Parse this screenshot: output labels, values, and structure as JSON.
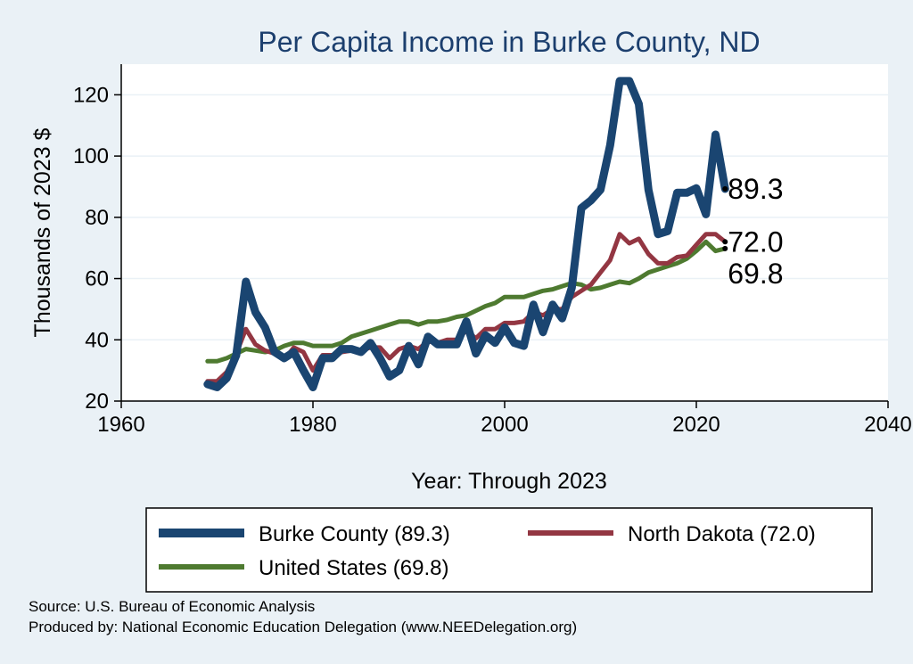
{
  "chart_data": {
    "type": "line",
    "title": "Per Capita Income in Burke County, ND",
    "xlabel": "Year: Through 2023",
    "ylabel": "Thousands of 2023 $",
    "xlim": [
      1960,
      2040
    ],
    "ylim": [
      20,
      130
    ],
    "xticks": [
      1960,
      1980,
      2000,
      2020,
      2040
    ],
    "yticks": [
      20,
      40,
      60,
      80,
      100,
      120
    ],
    "grid": "horizontal",
    "legend_position": "bottom",
    "series": [
      {
        "name": "Burke County (89.3)",
        "color": "#1a4571",
        "end_label": "89.3",
        "x": [
          1969,
          1970,
          1971,
          1972,
          1973,
          1974,
          1975,
          1976,
          1977,
          1978,
          1979,
          1980,
          1981,
          1982,
          1983,
          1984,
          1985,
          1986,
          1987,
          1988,
          1989,
          1990,
          1991,
          1992,
          1993,
          1994,
          1995,
          1996,
          1997,
          1998,
          1999,
          2000,
          2001,
          2002,
          2003,
          2004,
          2005,
          2006,
          2007,
          2008,
          2009,
          2010,
          2011,
          2012,
          2013,
          2014,
          2015,
          2016,
          2017,
          2018,
          2019,
          2020,
          2021,
          2022,
          2023
        ],
        "y": [
          25.5,
          24.5,
          27.5,
          35,
          59,
          49,
          44,
          36,
          34,
          36,
          30,
          24.5,
          34,
          34,
          37,
          37,
          36,
          39,
          34,
          28,
          30,
          38,
          32,
          41,
          38.5,
          38.5,
          38.5,
          46,
          35.5,
          41.5,
          39,
          44,
          39,
          38,
          51.5,
          42.5,
          51.5,
          47,
          57,
          83,
          85.5,
          89,
          103.5,
          124.5,
          124.5,
          117,
          89,
          74.5,
          75.5,
          88,
          88,
          89.5,
          81,
          107,
          89.3
        ]
      },
      {
        "name": "North Dakota (72.0)",
        "color": "#933642",
        "end_label": "72.0",
        "x": [
          1969,
          1970,
          1971,
          1972,
          1973,
          1974,
          1975,
          1976,
          1977,
          1978,
          1979,
          1980,
          1981,
          1982,
          1983,
          1984,
          1985,
          1986,
          1987,
          1988,
          1989,
          1990,
          1991,
          1992,
          1993,
          1994,
          1995,
          1996,
          1997,
          1998,
          1999,
          2000,
          2001,
          2002,
          2003,
          2004,
          2005,
          2006,
          2007,
          2008,
          2009,
          2010,
          2011,
          2012,
          2013,
          2014,
          2015,
          2016,
          2017,
          2018,
          2019,
          2020,
          2021,
          2022,
          2023
        ],
        "y": [
          26.5,
          26.5,
          29.5,
          35.5,
          43.5,
          38.5,
          36.5,
          35.5,
          33.5,
          37.5,
          36,
          30,
          35,
          35,
          36,
          36.5,
          36.5,
          37.5,
          37.5,
          34,
          37,
          38,
          37,
          39.5,
          39,
          40,
          40,
          43,
          40.5,
          43.5,
          43.5,
          45.5,
          45.5,
          46,
          49,
          48,
          50,
          50,
          54,
          56,
          58,
          62,
          66,
          74.5,
          71.5,
          73,
          68,
          65,
          65,
          67,
          67.5,
          71,
          74.5,
          74.5,
          72.0
        ]
      },
      {
        "name": "United States (69.8)",
        "color": "#4e7a30",
        "end_label": "69.8",
        "x": [
          1969,
          1970,
          1971,
          1972,
          1973,
          1974,
          1975,
          1976,
          1977,
          1978,
          1979,
          1980,
          1981,
          1982,
          1983,
          1984,
          1985,
          1986,
          1987,
          1988,
          1989,
          1990,
          1991,
          1992,
          1993,
          1994,
          1995,
          1996,
          1997,
          1998,
          1999,
          2000,
          2001,
          2002,
          2003,
          2004,
          2005,
          2006,
          2007,
          2008,
          2009,
          2010,
          2011,
          2012,
          2013,
          2014,
          2015,
          2016,
          2017,
          2018,
          2019,
          2020,
          2021,
          2022,
          2023
        ],
        "y": [
          33,
          33,
          34,
          35.5,
          37,
          36.5,
          36,
          36.5,
          38,
          39,
          39,
          38,
          38,
          38,
          39,
          41,
          42,
          43,
          44,
          45,
          46,
          46,
          45,
          46,
          46,
          46.5,
          47.5,
          48,
          49.5,
          51,
          52,
          54,
          54,
          54,
          55,
          56,
          56.5,
          57.5,
          58.5,
          58,
          56.5,
          57,
          58,
          59,
          58.5,
          60,
          62,
          63,
          64,
          65,
          66.5,
          69,
          72,
          69,
          69.8
        ]
      }
    ],
    "source_note": "Source: U.S. Bureau of Economic Analysis",
    "produced_note": "Produced by: National Economic Education Delegation (www.NEEDelegation.org)"
  }
}
